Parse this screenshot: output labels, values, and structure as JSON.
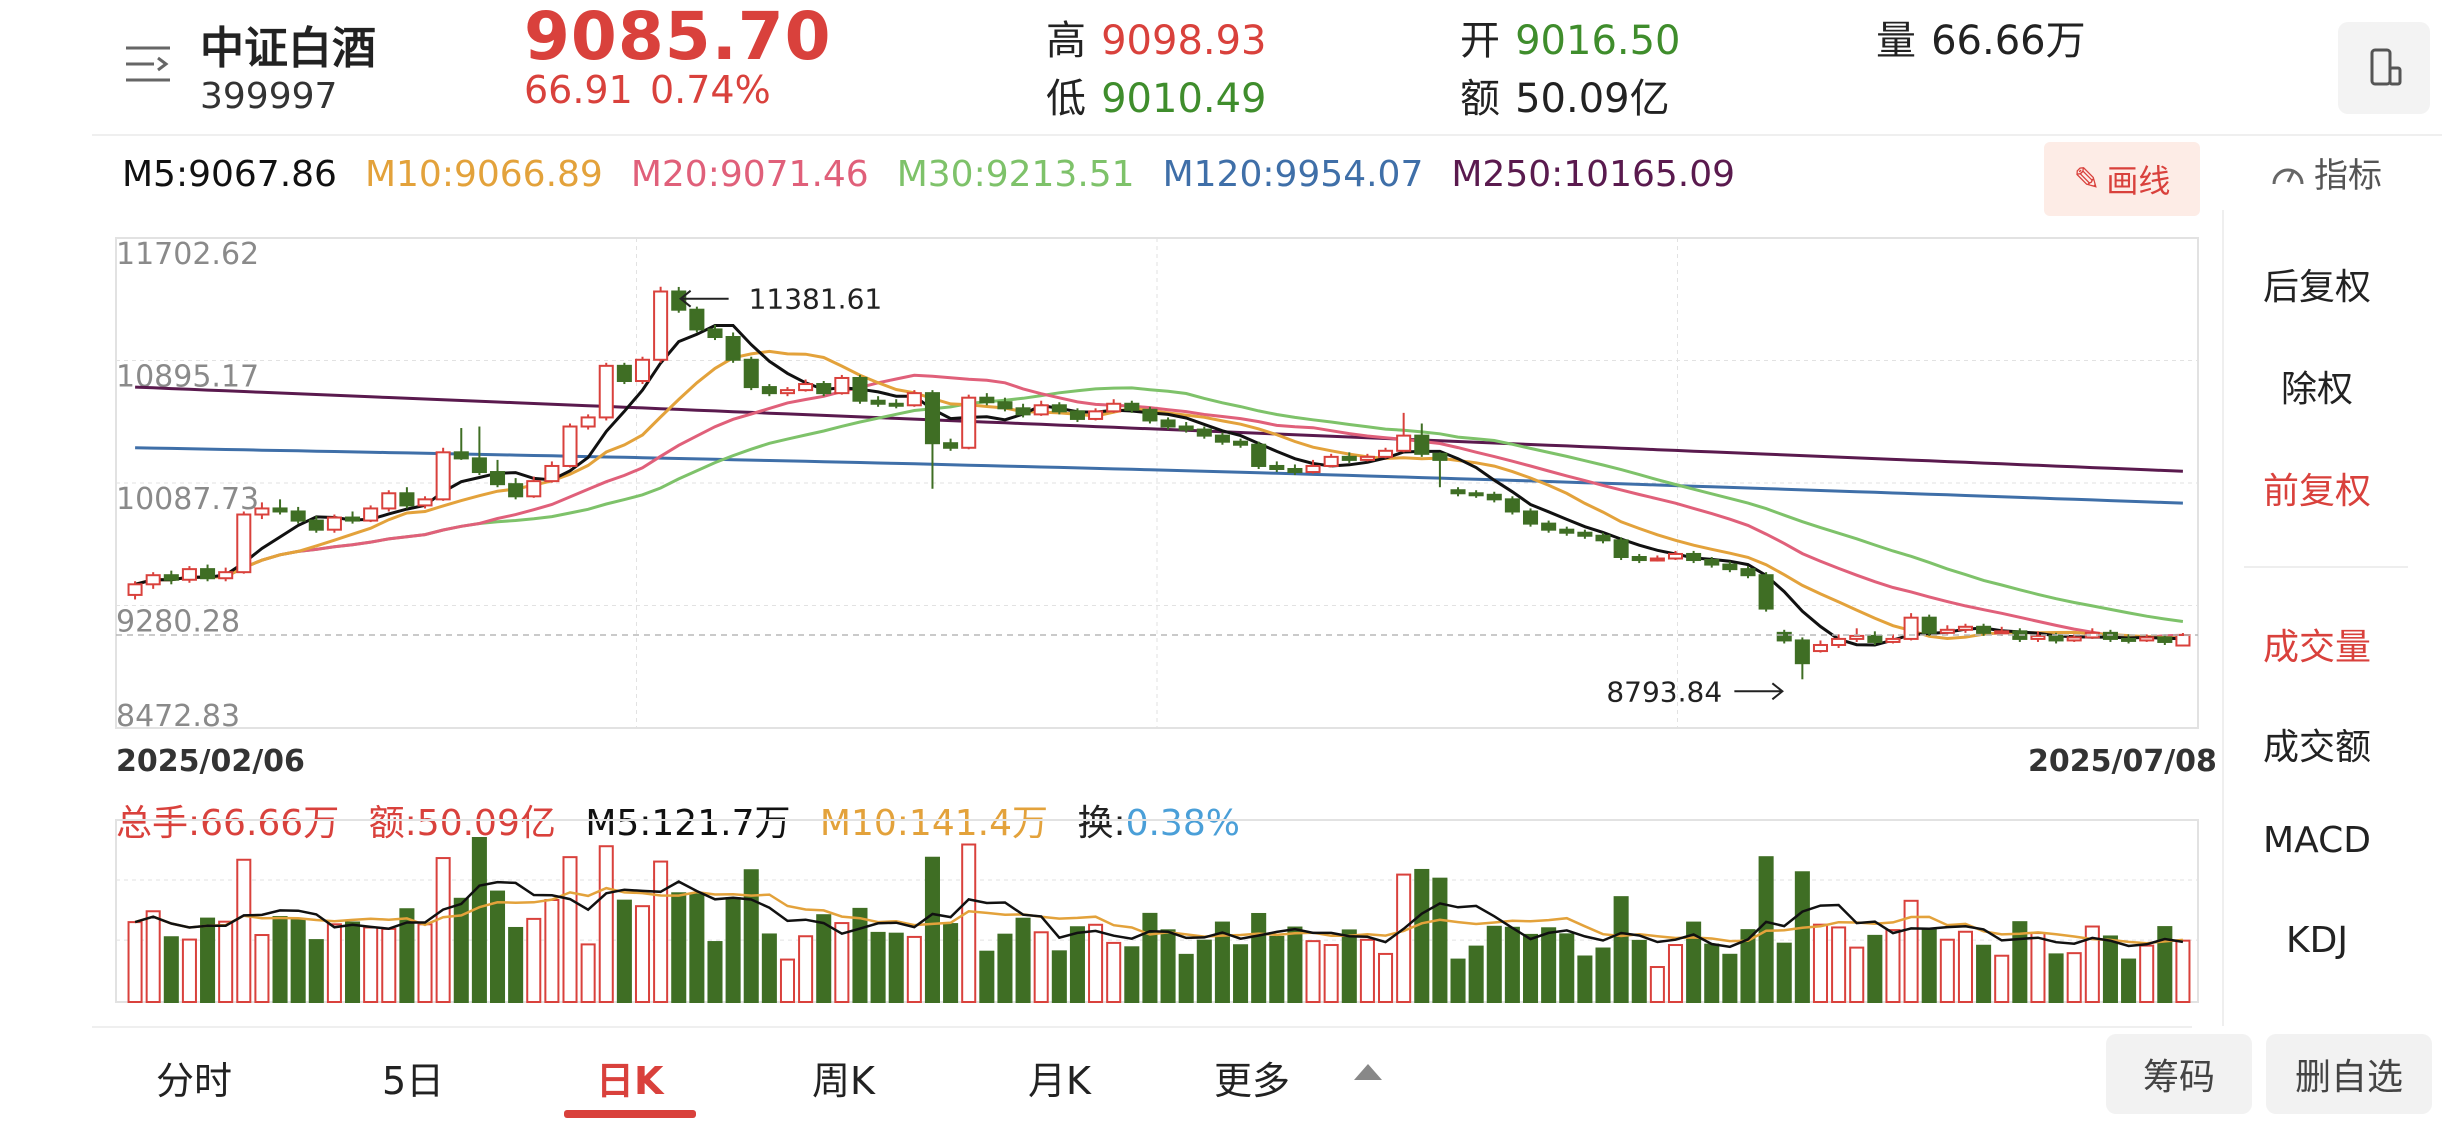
{
  "header": {
    "name": "中证白酒",
    "code": "399997",
    "price": "9085.70",
    "change": "66.91",
    "change_pct": "0.74%",
    "high_label": "高",
    "high": "9098.93",
    "low_label": "低",
    "low": "9010.49",
    "open_label": "开",
    "open": "9016.50",
    "amount_label": "额",
    "amount": "50.09亿",
    "volume_label": "量",
    "volume": "66.66万"
  },
  "ma_lines": [
    {
      "label": "M5:9067.86",
      "color": "#111111"
    },
    {
      "label": "M10:9066.89",
      "color": "#e3a23b"
    },
    {
      "label": "M20:9071.46",
      "color": "#e0607a"
    },
    {
      "label": "M30:9213.51",
      "color": "#7ec26a"
    },
    {
      "label": "M120:9954.07",
      "color": "#3f6fa8"
    },
    {
      "label": "M250:10165.09",
      "color": "#5a1a4e"
    }
  ],
  "draw_button": "画线",
  "indicator_label": "指标",
  "side_menu": [
    {
      "label": "后复权",
      "active": false
    },
    {
      "label": "除权",
      "active": false
    },
    {
      "label": "前复权",
      "active": true
    },
    {
      "label": "成交量",
      "active": true
    },
    {
      "label": "成交额",
      "active": false
    },
    {
      "label": "MACD",
      "active": false
    },
    {
      "label": "KDJ",
      "active": false
    }
  ],
  "chart_data": {
    "type": "candlestick",
    "y_ticks": [
      "11702.62",
      "10895.17",
      "10087.73",
      "9280.28",
      "8472.83"
    ],
    "ylim": [
      8472.83,
      11702.62
    ],
    "start_date": "2025/02/06",
    "end_date": "2025/07/08",
    "max_label": "11381.61",
    "min_label": "8793.84",
    "candles": [
      [
        9350,
        9420,
        9320,
        9440
      ],
      [
        9420,
        9480,
        9390,
        9500
      ],
      [
        9480,
        9450,
        9420,
        9510
      ],
      [
        9450,
        9520,
        9430,
        9540
      ],
      [
        9520,
        9460,
        9440,
        9550
      ],
      [
        9460,
        9500,
        9440,
        9530
      ],
      [
        9500,
        9880,
        9490,
        9900
      ],
      [
        9880,
        9920,
        9850,
        9960
      ],
      [
        9920,
        9900,
        9880,
        9980
      ],
      [
        9900,
        9840,
        9820,
        9930
      ],
      [
        9840,
        9780,
        9760,
        9870
      ],
      [
        9780,
        9860,
        9760,
        9880
      ],
      [
        9860,
        9840,
        9820,
        9900
      ],
      [
        9840,
        9920,
        9830,
        9940
      ],
      [
        9920,
        10020,
        9900,
        10040
      ],
      [
        10020,
        9940,
        9920,
        10060
      ],
      [
        9940,
        9980,
        9920,
        10000
      ],
      [
        9980,
        10290,
        9970,
        10320
      ],
      [
        10290,
        10250,
        10240,
        10450
      ],
      [
        10250,
        10160,
        10140,
        10460
      ],
      [
        10160,
        10080,
        10060,
        10240
      ],
      [
        10080,
        10000,
        9980,
        10120
      ],
      [
        10000,
        10100,
        9990,
        10130
      ],
      [
        10100,
        10200,
        10090,
        10230
      ],
      [
        10200,
        10460,
        10190,
        10480
      ],
      [
        10460,
        10520,
        10440,
        10540
      ],
      [
        10520,
        10860,
        10500,
        10880
      ],
      [
        10860,
        10760,
        10740,
        10880
      ],
      [
        10760,
        10900,
        10740,
        10920
      ],
      [
        10900,
        11350,
        10880,
        11381.61
      ],
      [
        11350,
        11230,
        11210,
        11380
      ],
      [
        11230,
        11100,
        11080,
        11250
      ],
      [
        11100,
        11050,
        11030,
        11130
      ],
      [
        11050,
        10900,
        10880,
        11080
      ],
      [
        10900,
        10720,
        10700,
        10920
      ],
      [
        10720,
        10680,
        10660,
        10740
      ],
      [
        10680,
        10700,
        10660,
        10720
      ],
      [
        10700,
        10740,
        10690,
        10770
      ],
      [
        10740,
        10680,
        10660,
        10760
      ],
      [
        10680,
        10780,
        10670,
        10800
      ],
      [
        10780,
        10630,
        10610,
        10800
      ],
      [
        10630,
        10610,
        10590,
        10660
      ],
      [
        10610,
        10600,
        10580,
        10640
      ],
      [
        10600,
        10680,
        10590,
        10700
      ],
      [
        10680,
        10350,
        10050,
        10700
      ],
      [
        10350,
        10320,
        10300,
        10380
      ],
      [
        10320,
        10650,
        10310,
        10670
      ],
      [
        10650,
        10620,
        10600,
        10680
      ],
      [
        10620,
        10580,
        10560,
        10650
      ],
      [
        10580,
        10540,
        10520,
        10610
      ],
      [
        10540,
        10600,
        10530,
        10630
      ],
      [
        10600,
        10560,
        10540,
        10620
      ],
      [
        10560,
        10510,
        10490,
        10580
      ],
      [
        10510,
        10560,
        10500,
        10580
      ],
      [
        10560,
        10610,
        10550,
        10640
      ],
      [
        10610,
        10570,
        10550,
        10630
      ],
      [
        10570,
        10500,
        10480,
        10590
      ],
      [
        10500,
        10460,
        10440,
        10520
      ],
      [
        10460,
        10440,
        10420,
        10490
      ],
      [
        10440,
        10400,
        10380,
        10460
      ],
      [
        10400,
        10360,
        10340,
        10420
      ],
      [
        10360,
        10340,
        10320,
        10380
      ],
      [
        10340,
        10200,
        10180,
        10360
      ],
      [
        10200,
        10180,
        10160,
        10230
      ],
      [
        10180,
        10160,
        10140,
        10210
      ],
      [
        10160,
        10200,
        10150,
        10240
      ],
      [
        10200,
        10260,
        10190,
        10280
      ],
      [
        10260,
        10240,
        10220,
        10290
      ],
      [
        10240,
        10260,
        10230,
        10280
      ],
      [
        10260,
        10300,
        10250,
        10320
      ],
      [
        10300,
        10400,
        10290,
        10550
      ],
      [
        10400,
        10280,
        10260,
        10480
      ],
      [
        10280,
        10240,
        10060,
        10290
      ],
      [
        10040,
        10020,
        10000,
        10060
      ],
      [
        10020,
        10010,
        9990,
        10040
      ],
      [
        10010,
        9980,
        9960,
        10030
      ],
      [
        9980,
        9900,
        9880,
        10000
      ],
      [
        9900,
        9820,
        9800,
        9920
      ],
      [
        9820,
        9780,
        9760,
        9840
      ],
      [
        9780,
        9760,
        9740,
        9800
      ],
      [
        9760,
        9740,
        9720,
        9780
      ],
      [
        9740,
        9710,
        9690,
        9760
      ],
      [
        9710,
        9600,
        9580,
        9730
      ],
      [
        9600,
        9580,
        9560,
        9620
      ],
      [
        9580,
        9590,
        9570,
        9610
      ],
      [
        9590,
        9620,
        9580,
        9640
      ],
      [
        9620,
        9580,
        9560,
        9640
      ],
      [
        9580,
        9550,
        9530,
        9600
      ],
      [
        9550,
        9520,
        9500,
        9570
      ],
      [
        9520,
        9480,
        9460,
        9540
      ],
      [
        9480,
        9260,
        9240,
        9500
      ],
      [
        9100,
        9050,
        9030,
        9120
      ],
      [
        9050,
        8900,
        8793.84,
        9070
      ],
      [
        8980,
        9020,
        8970,
        9050
      ],
      [
        9020,
        9060,
        9000,
        9090
      ],
      [
        9060,
        9080,
        9040,
        9130
      ],
      [
        9080,
        9040,
        9020,
        9110
      ],
      [
        9040,
        9060,
        9030,
        9090
      ],
      [
        9060,
        9200,
        9050,
        9230
      ],
      [
        9200,
        9100,
        9080,
        9220
      ],
      [
        9100,
        9120,
        9090,
        9150
      ],
      [
        9120,
        9140,
        9100,
        9160
      ],
      [
        9140,
        9100,
        9080,
        9160
      ],
      [
        9100,
        9110,
        9080,
        9140
      ],
      [
        9110,
        9060,
        9040,
        9130
      ],
      [
        9060,
        9080,
        9040,
        9110
      ],
      [
        9080,
        9050,
        9030,
        9100
      ],
      [
        9050,
        9070,
        9040,
        9090
      ],
      [
        9070,
        9100,
        9060,
        9130
      ],
      [
        9100,
        9060,
        9040,
        9120
      ],
      [
        9060,
        9050,
        9030,
        9090
      ],
      [
        9050,
        9070,
        9040,
        9090
      ],
      [
        9070,
        9040,
        9020,
        9090
      ],
      [
        9016.5,
        9085.7,
        9010.49,
        9098.93
      ]
    ]
  },
  "volume_panel": {
    "total_hands": "总手:66.66万",
    "amount": "额:50.09亿",
    "m5": "M5:121.7万",
    "m10": "M10:141.4万",
    "turnover_label": "换:",
    "turnover": "0.38%"
  },
  "bottom_tabs": [
    {
      "label": "分时",
      "active": false
    },
    {
      "label": "5日",
      "active": false
    },
    {
      "label": "日K",
      "active": true
    },
    {
      "label": "周K",
      "active": false
    },
    {
      "label": "月K",
      "active": false
    },
    {
      "label": "更多",
      "active": false
    }
  ],
  "chip_button": "筹码",
  "remove_watch_button": "删自选",
  "colors": {
    "up": "#d9413c",
    "down": "#3f6e24",
    "grid": "#e2e2e2"
  }
}
